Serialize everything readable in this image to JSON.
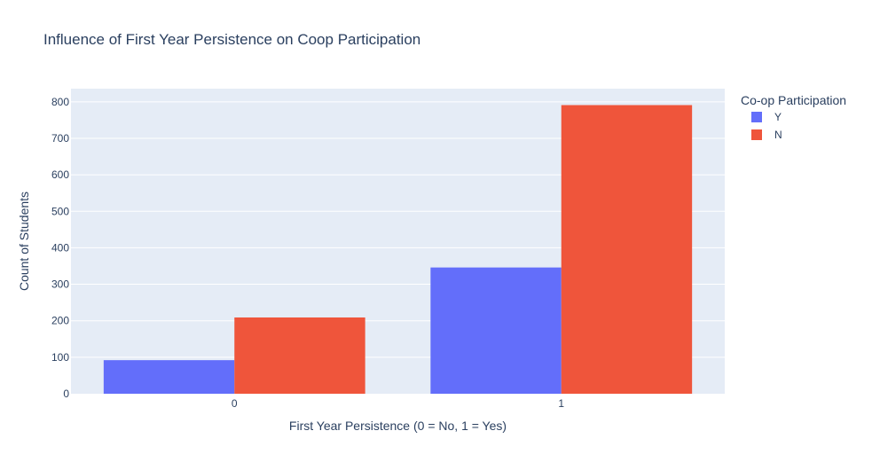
{
  "chart_data": {
    "type": "bar",
    "barmode": "group",
    "title": "Influence of First Year Persistence on Coop Participation",
    "xlabel": "First Year Persistence (0 = No, 1 = Yes)",
    "ylabel": "Count of Students",
    "categories": [
      "0",
      "1"
    ],
    "series": [
      {
        "name": "Y",
        "color": "#636efa",
        "values": [
          92,
          346
        ]
      },
      {
        "name": "N",
        "color": "#ef553b",
        "values": [
          209,
          791
        ]
      }
    ],
    "ylim": [
      0,
      836
    ],
    "yticks": [
      0,
      100,
      200,
      300,
      400,
      500,
      600,
      700,
      800
    ],
    "grid": true,
    "legend": {
      "title": "Co-op Participation",
      "position": "top-right"
    },
    "colors": {
      "plot_bg": "#e5ecf6",
      "grid": "#ffffff",
      "text": "#2a3f5f"
    }
  }
}
